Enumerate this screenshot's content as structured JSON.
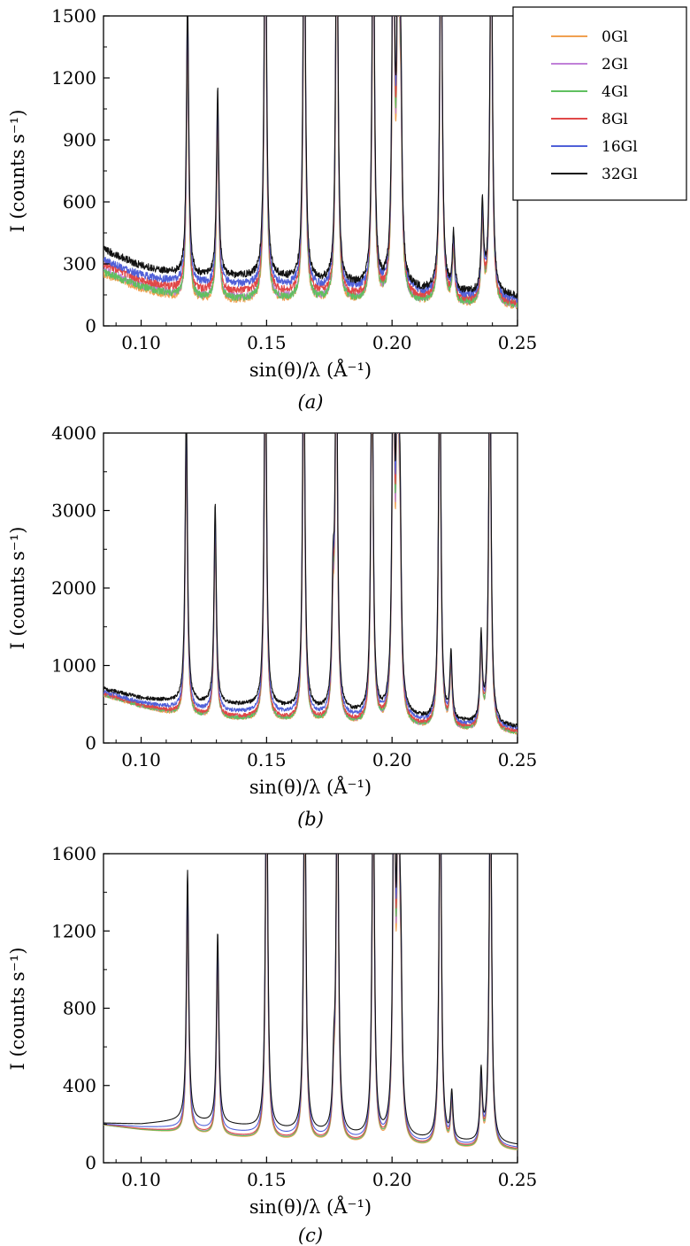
{
  "chart_data": [
    {
      "type": "line",
      "caption": "(a)",
      "xlabel": "sin(θ)/λ (Å⁻¹)",
      "ylabel": "I (counts s⁻¹)",
      "xlim": [
        0.085,
        0.25
      ],
      "ylim": [
        0,
        1500
      ],
      "xticks": [
        0.1,
        0.15,
        0.2,
        0.25
      ],
      "xtick_labels": [
        "0.10",
        "0.15",
        "0.20",
        "0.25"
      ],
      "yticks": [
        0,
        300,
        600,
        900,
        1200,
        1500
      ],
      "ytick_labels": [
        "0",
        "300",
        "600",
        "900",
        "1200",
        "1500"
      ],
      "legend": {
        "placement": "top-right",
        "visible": true
      },
      "noise": 18,
      "peaks": [
        {
          "x": 0.1185,
          "height": 1300
        },
        {
          "x": 0.1305,
          "height": 870
        },
        {
          "x": 0.1495,
          "height": 2000
        },
        {
          "x": 0.165,
          "height": 2000
        },
        {
          "x": 0.178,
          "height": 2000
        },
        {
          "x": 0.1925,
          "height": 2000
        },
        {
          "x": 0.2005,
          "height": 2000
        },
        {
          "x": 0.2025,
          "height": 2000
        },
        {
          "x": 0.2035,
          "height": 700
        },
        {
          "x": 0.2195,
          "height": 2000
        },
        {
          "x": 0.2245,
          "height": 260
        },
        {
          "x": 0.236,
          "height": 400
        },
        {
          "x": 0.2395,
          "height": 2000
        }
      ],
      "series": [
        {
          "name": "0Gl",
          "color": "#f0a050",
          "baseline": {
            "x": [
              0.085,
              0.1,
              0.118,
              0.15,
              0.2,
              0.25
            ],
            "y": [
              250,
              180,
              120,
              120,
              110,
              90
            ]
          }
        },
        {
          "name": "2Gl",
          "color": "#c080d8",
          "baseline": {
            "x": [
              0.085,
              0.1,
              0.118,
              0.15,
              0.2,
              0.25
            ],
            "y": [
              270,
              195,
              135,
              130,
              115,
              95
            ]
          }
        },
        {
          "name": "4Gl",
          "color": "#60c060",
          "baseline": {
            "x": [
              0.085,
              0.1,
              0.118,
              0.15,
              0.2,
              0.25
            ],
            "y": [
              260,
              190,
              130,
              125,
              110,
              95
            ]
          }
        },
        {
          "name": "8Gl",
          "color": "#e04848",
          "baseline": {
            "x": [
              0.085,
              0.1,
              0.118,
              0.15,
              0.2,
              0.25
            ],
            "y": [
              300,
              220,
              165,
              160,
              130,
              105
            ]
          }
        },
        {
          "name": "16Gl",
          "color": "#5060d8",
          "baseline": {
            "x": [
              0.085,
              0.1,
              0.118,
              0.15,
              0.2,
              0.25
            ],
            "y": [
              320,
              245,
              200,
              195,
              155,
              120
            ]
          }
        },
        {
          "name": "32Gl",
          "color": "#111111",
          "baseline": {
            "x": [
              0.085,
              0.1,
              0.118,
              0.15,
              0.2,
              0.25
            ],
            "y": [
              370,
              290,
              240,
              235,
              175,
              140
            ]
          }
        }
      ]
    },
    {
      "type": "line",
      "caption": "(b)",
      "xlabel": "sin(θ)/λ (Å⁻¹)",
      "ylabel": "I (counts s⁻¹)",
      "xlim": [
        0.085,
        0.25
      ],
      "ylim": [
        0,
        4000
      ],
      "xticks": [
        0.1,
        0.15,
        0.2,
        0.25
      ],
      "xtick_labels": [
        "0.10",
        "0.15",
        "0.20",
        "0.25"
      ],
      "yticks": [
        0,
        1000,
        2000,
        3000,
        4000
      ],
      "ytick_labels": [
        "0",
        "1000",
        "2000",
        "3000",
        "4000"
      ],
      "legend": {
        "visible": false
      },
      "noise": 25,
      "peaks": [
        {
          "x": 0.118,
          "height": 3700
        },
        {
          "x": 0.1295,
          "height": 2450
        },
        {
          "x": 0.1495,
          "height": 5000
        },
        {
          "x": 0.1648,
          "height": 5000
        },
        {
          "x": 0.1765,
          "height": 1300
        },
        {
          "x": 0.1778,
          "height": 5000
        },
        {
          "x": 0.192,
          "height": 5000
        },
        {
          "x": 0.2005,
          "height": 5000
        },
        {
          "x": 0.2022,
          "height": 5000
        },
        {
          "x": 0.2032,
          "height": 1900
        },
        {
          "x": 0.219,
          "height": 5000
        },
        {
          "x": 0.2235,
          "height": 800
        },
        {
          "x": 0.2355,
          "height": 1050
        },
        {
          "x": 0.239,
          "height": 5000
        }
      ],
      "series": [
        {
          "name": "0Gl",
          "color": "#f0a050",
          "baseline": {
            "x": [
              0.085,
              0.1,
              0.118,
              0.15,
              0.2,
              0.25
            ],
            "y": [
              620,
              470,
              330,
              280,
              200,
              120
            ]
          }
        },
        {
          "name": "2Gl",
          "color": "#c080d8",
          "baseline": {
            "x": [
              0.085,
              0.1,
              0.118,
              0.15,
              0.2,
              0.25
            ],
            "y": [
              630,
              480,
              340,
              290,
              210,
              125
            ]
          }
        },
        {
          "name": "4Gl",
          "color": "#60c060",
          "baseline": {
            "x": [
              0.085,
              0.1,
              0.118,
              0.15,
              0.2,
              0.25
            ],
            "y": [
              625,
              475,
              335,
              285,
              205,
              120
            ]
          }
        },
        {
          "name": "8Gl",
          "color": "#e04848",
          "baseline": {
            "x": [
              0.085,
              0.1,
              0.118,
              0.15,
              0.2,
              0.25
            ],
            "y": [
              640,
              490,
              360,
              310,
              230,
              140
            ]
          }
        },
        {
          "name": "16Gl",
          "color": "#5060d8",
          "baseline": {
            "x": [
              0.085,
              0.1,
              0.118,
              0.15,
              0.2,
              0.25
            ],
            "y": [
              660,
              520,
              420,
              380,
              280,
              170
            ]
          }
        },
        {
          "name": "32Gl",
          "color": "#111111",
          "baseline": {
            "x": [
              0.085,
              0.1,
              0.118,
              0.15,
              0.2,
              0.25
            ],
            "y": [
              700,
              580,
              520,
              470,
              330,
              200
            ]
          }
        }
      ]
    },
    {
      "type": "line",
      "caption": "(c)",
      "xlabel": "sin(θ)/λ (Å⁻¹)",
      "ylabel": "I (counts s⁻¹)",
      "xlim": [
        0.085,
        0.25
      ],
      "ylim": [
        0,
        1600
      ],
      "xticks": [
        0.1,
        0.15,
        0.2,
        0.25
      ],
      "xtick_labels": [
        "0.10",
        "0.15",
        "0.20",
        "0.25"
      ],
      "yticks": [
        0,
        400,
        800,
        1200,
        1600
      ],
      "ytick_labels": [
        "0",
        "400",
        "800",
        "1200",
        "1600"
      ],
      "legend": {
        "visible": false
      },
      "noise": 0,
      "peaks": [
        {
          "x": 0.1185,
          "height": 1230
        },
        {
          "x": 0.1305,
          "height": 940
        },
        {
          "x": 0.15,
          "height": 2000
        },
        {
          "x": 0.1652,
          "height": 2000
        },
        {
          "x": 0.1768,
          "height": 260
        },
        {
          "x": 0.1782,
          "height": 2000
        },
        {
          "x": 0.1925,
          "height": 2000
        },
        {
          "x": 0.2008,
          "height": 2000
        },
        {
          "x": 0.2025,
          "height": 2000
        },
        {
          "x": 0.2035,
          "height": 640
        },
        {
          "x": 0.2192,
          "height": 2000
        },
        {
          "x": 0.2238,
          "height": 230
        },
        {
          "x": 0.2355,
          "height": 340
        },
        {
          "x": 0.2392,
          "height": 2000
        }
      ],
      "series": [
        {
          "name": "0Gl",
          "color": "#f0a050",
          "baseline": {
            "x": [
              0.085,
              0.1,
              0.118,
              0.15,
              0.2,
              0.25
            ],
            "y": [
              195,
              170,
              150,
              115,
              80,
              60
            ]
          }
        },
        {
          "name": "2Gl",
          "color": "#c080d8",
          "baseline": {
            "x": [
              0.085,
              0.1,
              0.118,
              0.15,
              0.2,
              0.25
            ],
            "y": [
              195,
              172,
              155,
              120,
              85,
              65
            ]
          }
        },
        {
          "name": "4Gl",
          "color": "#60c060",
          "baseline": {
            "x": [
              0.085,
              0.1,
              0.118,
              0.15,
              0.2,
              0.25
            ],
            "y": [
              195,
              171,
              152,
              118,
              82,
              62
            ]
          }
        },
        {
          "name": "8Gl",
          "color": "#e04848",
          "baseline": {
            "x": [
              0.085,
              0.1,
              0.118,
              0.15,
              0.2,
              0.25
            ],
            "y": [
              198,
              175,
              160,
              125,
              88,
              68
            ]
          }
        },
        {
          "name": "16Gl",
          "color": "#5060d8",
          "baseline": {
            "x": [
              0.085,
              0.1,
              0.118,
              0.15,
              0.2,
              0.25
            ],
            "y": [
              200,
              185,
              180,
              145,
              100,
              75
            ]
          }
        },
        {
          "name": "32Gl",
          "color": "#111111",
          "baseline": {
            "x": [
              0.085,
              0.1,
              0.118,
              0.15,
              0.2,
              0.25
            ],
            "y": [
              205,
              200,
              220,
              175,
              120,
              90
            ]
          }
        }
      ]
    }
  ]
}
